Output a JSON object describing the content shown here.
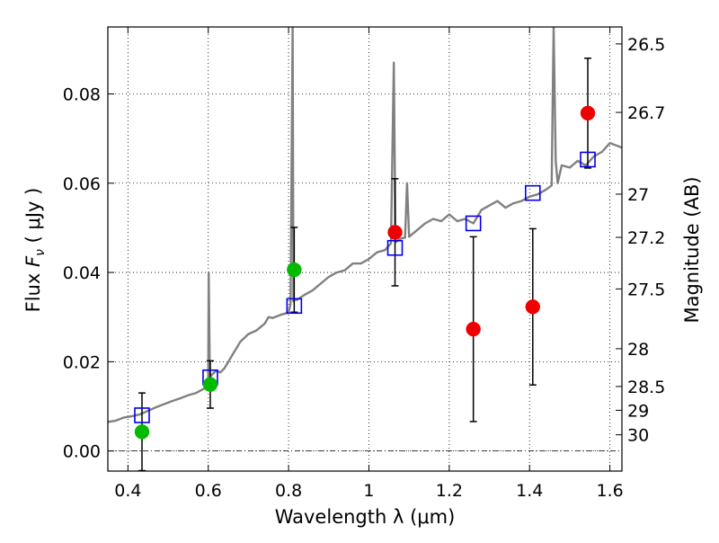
{
  "chart_data": {
    "type": "scatter",
    "xlabel": "Wavelength  λ (μm)",
    "ylabel": "Flux  F_ν  ( μJy )",
    "ylabel_parts": {
      "pre": "Flux  ",
      "symbol": "F",
      "sub": "ν",
      "post": "  ( μJy )"
    },
    "y2label": "Magnitude (AB)",
    "xlim": [
      0.35,
      1.63
    ],
    "ylim": [
      -0.0045,
      0.095
    ],
    "x_ticks": [
      0.4,
      0.6,
      0.8,
      1.0,
      1.2,
      1.4,
      1.6
    ],
    "x_tick_labels": [
      "0.4",
      "0.6",
      "0.8",
      "1",
      "1.2",
      "1.4",
      "1.6"
    ],
    "y_ticks": [
      0.0,
      0.02,
      0.04,
      0.06,
      0.08
    ],
    "y_tick_labels": [
      "0.00",
      "0.02",
      "0.04",
      "0.06",
      "0.08"
    ],
    "mag_ticks": [
      26.5,
      26.7,
      27,
      27.2,
      27.5,
      28,
      28.5,
      29,
      30
    ],
    "mag_tick_labels": [
      "26.5",
      "26.7",
      "27",
      "27.2",
      "27.5",
      "28",
      "28.5",
      "29",
      "30"
    ],
    "grid": true,
    "colors": {
      "model": "#808080",
      "model_points": "#0000ee",
      "hst_acs": "#00bb00",
      "hst_wfc3": "#ee0000",
      "errorbar": "#000000",
      "zero_line": "#000000"
    },
    "series": [
      {
        "kind": "model_spectrum",
        "x": [
          0.35,
          0.37,
          0.39,
          0.41,
          0.43,
          0.45,
          0.47,
          0.49,
          0.51,
          0.53,
          0.55,
          0.57,
          0.59,
          0.6,
          0.601,
          0.604,
          0.61,
          0.62,
          0.63,
          0.64,
          0.65,
          0.66,
          0.67,
          0.68,
          0.7,
          0.72,
          0.74,
          0.75,
          0.76,
          0.78,
          0.8,
          0.805,
          0.81,
          0.812,
          0.815,
          0.82,
          0.84,
          0.86,
          0.88,
          0.9,
          0.92,
          0.94,
          0.96,
          0.98,
          1.0,
          1.02,
          1.04,
          1.055,
          1.062,
          1.066,
          1.07,
          1.08,
          1.09,
          1.095,
          1.1,
          1.12,
          1.14,
          1.16,
          1.18,
          1.2,
          1.22,
          1.24,
          1.26,
          1.28,
          1.3,
          1.32,
          1.34,
          1.36,
          1.38,
          1.4,
          1.42,
          1.44,
          1.455,
          1.46,
          1.465,
          1.47,
          1.48,
          1.5,
          1.52,
          1.54,
          1.56,
          1.58,
          1.6,
          1.63
        ],
        "y": [
          0.0065,
          0.0068,
          0.0075,
          0.0078,
          0.0082,
          0.009,
          0.0098,
          0.0105,
          0.0112,
          0.0118,
          0.0125,
          0.013,
          0.014,
          0.016,
          0.04,
          0.0165,
          0.0172,
          0.018,
          0.0176,
          0.0185,
          0.02,
          0.0215,
          0.023,
          0.0245,
          0.0262,
          0.027,
          0.0285,
          0.03,
          0.0298,
          0.0305,
          0.031,
          0.033,
          0.095,
          0.0335,
          0.034,
          0.0338,
          0.035,
          0.036,
          0.0375,
          0.039,
          0.04,
          0.0405,
          0.042,
          0.042,
          0.043,
          0.0445,
          0.045,
          0.0465,
          0.087,
          0.0468,
          0.047,
          0.0476,
          0.0478,
          0.06,
          0.048,
          0.0495,
          0.051,
          0.052,
          0.0515,
          0.053,
          0.0515,
          0.052,
          0.051,
          0.054,
          0.055,
          0.056,
          0.0545,
          0.0555,
          0.056,
          0.057,
          0.0575,
          0.0585,
          0.0595,
          0.095,
          0.065,
          0.06,
          0.064,
          0.0635,
          0.065,
          0.064,
          0.066,
          0.067,
          0.069,
          0.068
        ]
      },
      {
        "kind": "model_points",
        "x": [
          0.435,
          0.605,
          0.814,
          1.065,
          1.26,
          1.408,
          1.545
        ],
        "y": [
          0.008,
          0.0165,
          0.0325,
          0.0455,
          0.051,
          0.0578,
          0.0653
        ]
      },
      {
        "kind": "hst_acs",
        "x": [
          0.435,
          0.605,
          0.814
        ],
        "y": [
          0.0043,
          0.0149,
          0.0406
        ],
        "err": [
          0.0087,
          0.0053,
          0.0095
        ]
      },
      {
        "kind": "hst_wfc3",
        "x": [
          1.065,
          1.26,
          1.408,
          1.545
        ],
        "y": [
          0.049,
          0.0273,
          0.0323,
          0.0757
        ],
        "err": [
          0.012,
          0.0207,
          0.0175,
          0.0123
        ]
      }
    ]
  }
}
